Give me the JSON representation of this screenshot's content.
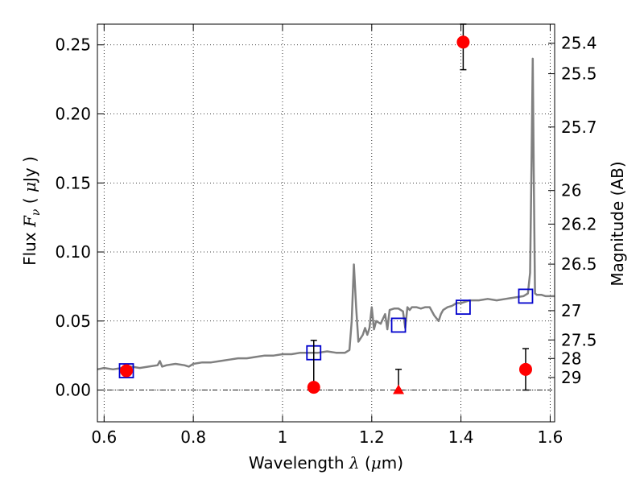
{
  "chart_data": {
    "type": "scatter",
    "xlabel_text": "Wavelength",
    "xlabel_symbol": "λ",
    "xlabel_unit_open": "(",
    "xlabel_unit_mu": "μ",
    "xlabel_unit_rest": "m)",
    "ylabel_text": "Flux",
    "ylabel_symbol": "F",
    "ylabel_sub": "ν",
    "ylabel_unit_open": "(",
    "ylabel_unit_mu": "μ",
    "ylabel_unit_rest": "Jy )",
    "y2label": "Magnitude (AB)",
    "xlim": [
      0.585,
      1.61
    ],
    "ylim": [
      -0.023,
      0.265
    ],
    "grid": true,
    "x_ticks": [
      0.6,
      0.8,
      1.0,
      1.2,
      1.4,
      1.6
    ],
    "x_tick_labels": [
      "0.6",
      "0.8",
      "1",
      "1.2",
      "1.4",
      "1.6"
    ],
    "y_ticks": [
      0.0,
      0.05,
      0.1,
      0.15,
      0.2,
      0.25
    ],
    "y_tick_labels": [
      "0.00",
      "0.05",
      "0.10",
      "0.15",
      "0.20",
      "0.25"
    ],
    "mag_ticks": [
      {
        "label": "25.4",
        "flux": 0.2512
      },
      {
        "label": "25.5",
        "flux": 0.2291
      },
      {
        "label": "25.7",
        "flux": 0.1905
      },
      {
        "label": "26",
        "flux": 0.1445
      },
      {
        "label": "26.2",
        "flux": 0.1202
      },
      {
        "label": "26.5",
        "flux": 0.0912
      },
      {
        "label": "27",
        "flux": 0.0575
      },
      {
        "label": "27.5",
        "flux": 0.0363
      },
      {
        "label": "28",
        "flux": 0.0229
      },
      {
        "label": "29",
        "flux": 0.0091
      }
    ],
    "series": [
      {
        "type": "line",
        "color": "#808080",
        "x": [
          0.585,
          0.6,
          0.62,
          0.64,
          0.66,
          0.68,
          0.7,
          0.72,
          0.725,
          0.73,
          0.74,
          0.76,
          0.78,
          0.79,
          0.8,
          0.82,
          0.84,
          0.86,
          0.88,
          0.9,
          0.92,
          0.94,
          0.96,
          0.98,
          1.0,
          1.02,
          1.04,
          1.06,
          1.08,
          1.1,
          1.12,
          1.14,
          1.15,
          1.155,
          1.16,
          1.165,
          1.17,
          1.18,
          1.185,
          1.19,
          1.195,
          1.2,
          1.205,
          1.21,
          1.22,
          1.23,
          1.235,
          1.24,
          1.25,
          1.26,
          1.27,
          1.275,
          1.28,
          1.285,
          1.29,
          1.3,
          1.31,
          1.32,
          1.33,
          1.34,
          1.35,
          1.355,
          1.36,
          1.37,
          1.38,
          1.39,
          1.4,
          1.42,
          1.44,
          1.46,
          1.48,
          1.5,
          1.52,
          1.54,
          1.55,
          1.555,
          1.558,
          1.561,
          1.563,
          1.566,
          1.57,
          1.58,
          1.59,
          1.61
        ],
        "y": [
          0.015,
          0.016,
          0.015,
          0.016,
          0.017,
          0.016,
          0.017,
          0.018,
          0.021,
          0.017,
          0.018,
          0.019,
          0.018,
          0.017,
          0.019,
          0.02,
          0.02,
          0.021,
          0.022,
          0.023,
          0.023,
          0.024,
          0.025,
          0.025,
          0.026,
          0.026,
          0.027,
          0.027,
          0.027,
          0.028,
          0.027,
          0.027,
          0.029,
          0.05,
          0.091,
          0.06,
          0.035,
          0.04,
          0.045,
          0.04,
          0.045,
          0.06,
          0.044,
          0.05,
          0.048,
          0.055,
          0.044,
          0.058,
          0.059,
          0.059,
          0.057,
          0.045,
          0.06,
          0.058,
          0.06,
          0.06,
          0.059,
          0.06,
          0.06,
          0.054,
          0.05,
          0.055,
          0.058,
          0.06,
          0.061,
          0.063,
          0.063,
          0.065,
          0.065,
          0.066,
          0.065,
          0.066,
          0.067,
          0.068,
          0.07,
          0.085,
          0.16,
          0.24,
          0.16,
          0.07,
          0.069,
          0.069,
          0.068,
          0.068
        ]
      },
      {
        "type": "scatter",
        "marker": "square-open",
        "color": "#0000cc",
        "x": [
          0.65,
          1.07,
          1.26,
          1.405,
          1.545
        ],
        "y": [
          0.014,
          0.027,
          0.047,
          0.06,
          0.068
        ]
      },
      {
        "type": "scatter",
        "marker": "circle",
        "color": "#ff0000",
        "x": [
          0.65,
          1.07,
          1.405,
          1.545
        ],
        "y": [
          0.014,
          0.002,
          0.252,
          0.015
        ],
        "yerr_low": [
          0.014,
          0.002,
          0.232,
          0.0
        ],
        "yerr_high": [
          0.017,
          0.036,
          0.265,
          0.03
        ]
      },
      {
        "type": "scatter",
        "marker": "triangle",
        "color": "#ff0000",
        "x": [
          1.26
        ],
        "y": [
          0.0
        ],
        "yerr_low": [
          0.0
        ],
        "yerr_high": [
          0.015
        ]
      }
    ]
  }
}
